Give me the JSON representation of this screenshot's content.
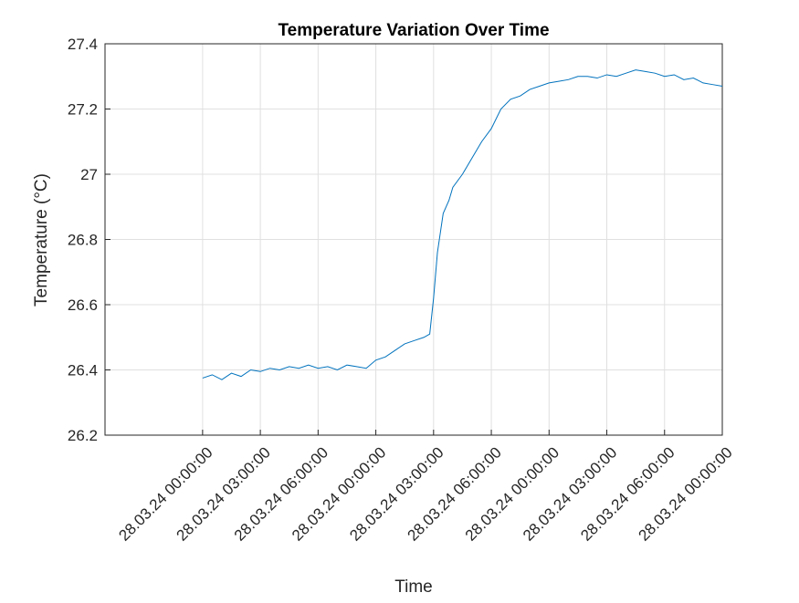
{
  "chart_data": {
    "type": "line",
    "title": "Temperature Variation Over Time",
    "xlabel": "Time",
    "ylabel": "Temperature (°C)",
    "x": [
      0,
      0.5,
      1,
      1.5,
      2,
      2.5,
      3,
      3.5,
      4,
      4.5,
      5,
      5.5,
      6,
      6.5,
      7,
      7.5,
      8,
      8.5,
      9,
      9.5,
      10,
      10.5,
      11,
      11.5,
      11.8,
      12,
      12.2,
      12.5,
      12.8,
      13,
      13.5,
      14,
      14.5,
      15,
      15.5,
      16,
      16.5,
      17,
      17.5,
      18,
      18.5,
      19,
      19.5,
      20,
      20.5,
      21,
      21.5,
      22,
      22.5,
      23,
      23.5,
      24,
      24.5,
      25,
      25.5,
      26,
      26.5,
      27
    ],
    "series": [
      {
        "name": "Temperature",
        "color": "#0072bd",
        "values": [
          26.375,
          26.385,
          26.37,
          26.39,
          26.38,
          26.4,
          26.395,
          26.405,
          26.4,
          26.41,
          26.405,
          26.415,
          26.405,
          26.41,
          26.4,
          26.415,
          26.41,
          26.405,
          26.43,
          26.44,
          26.46,
          26.48,
          26.49,
          26.5,
          26.51,
          26.62,
          26.76,
          26.88,
          26.92,
          26.96,
          27.0,
          27.05,
          27.1,
          27.14,
          27.2,
          27.23,
          27.24,
          27.26,
          27.27,
          27.28,
          27.285,
          27.29,
          27.3,
          27.3,
          27.295,
          27.305,
          27.3,
          27.31,
          27.32,
          27.315,
          27.31,
          27.3,
          27.305,
          27.29,
          27.295,
          27.28,
          27.275,
          27.27
        ]
      }
    ],
    "xlim": [
      -5.07,
      27
    ],
    "ylim": [
      26.2,
      27.4
    ],
    "xticks": [
      {
        "value": 0,
        "label": "28.03.24 00:00:00"
      },
      {
        "value": 3,
        "label": "28.03.24 03:00:00"
      },
      {
        "value": 6,
        "label": "28.03.24 06:00:00"
      },
      {
        "value": 9,
        "label": "28.03.24 00:00:00"
      },
      {
        "value": 12,
        "label": "28.03.24 03:00:00"
      },
      {
        "value": 15,
        "label": "28.03.24 06:00:00"
      },
      {
        "value": 18,
        "label": "28.03.24 00:00:00"
      },
      {
        "value": 21,
        "label": "28.03.24 03:00:00"
      },
      {
        "value": 24,
        "label": "28.03.24 06:00:00"
      },
      {
        "value": 27,
        "label": "28.03.24 00:00:00"
      }
    ],
    "yticks": [
      26.2,
      26.4,
      26.6,
      26.8,
      27,
      27.2,
      27.4
    ],
    "grid": true
  }
}
